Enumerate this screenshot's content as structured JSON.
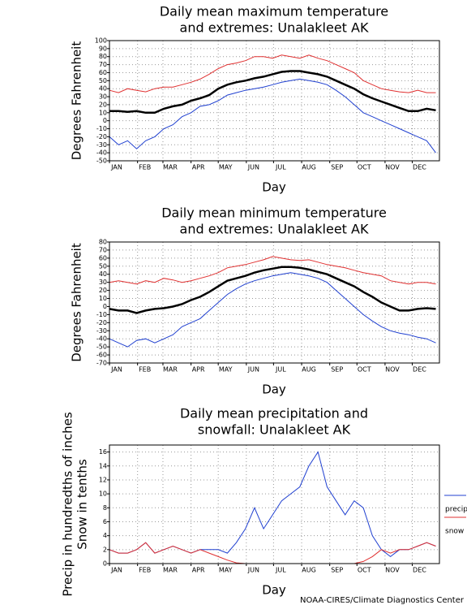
{
  "chart_data": [
    {
      "type": "line",
      "title": [
        "Daily mean maximum temperature",
        "and extremes: Unalakleet AK"
      ],
      "ylabel": [
        "Degrees Fahrenheit"
      ],
      "xlabel": "Day",
      "xlim": [
        1,
        365
      ],
      "xticks": [
        {
          "value": 1,
          "label": "JAN"
        },
        {
          "value": 32,
          "label": "FEB"
        },
        {
          "value": 60,
          "label": "MAR"
        },
        {
          "value": 91,
          "label": "APR"
        },
        {
          "value": 121,
          "label": "MAY"
        },
        {
          "value": 152,
          "label": "JUN"
        },
        {
          "value": 182,
          "label": "JUL"
        },
        {
          "value": 213,
          "label": "AUG"
        },
        {
          "value": 244,
          "label": "SEP"
        },
        {
          "value": 274,
          "label": "OCT"
        },
        {
          "value": 305,
          "label": "NOV"
        },
        {
          "value": 335,
          "label": "DEC"
        }
      ],
      "ylim": [
        -50,
        100
      ],
      "yticks": [
        -50,
        -40,
        -30,
        -20,
        -10,
        0,
        10,
        20,
        30,
        40,
        50,
        60,
        70,
        80,
        90,
        100
      ],
      "grid": true,
      "x": [
        1,
        11,
        21,
        31,
        41,
        51,
        61,
        71,
        81,
        91,
        101,
        111,
        121,
        131,
        141,
        151,
        161,
        171,
        181,
        191,
        201,
        211,
        221,
        231,
        241,
        251,
        261,
        271,
        281,
        291,
        301,
        311,
        321,
        331,
        341,
        351,
        361
      ],
      "series": [
        {
          "color": "#e03030",
          "width": 1,
          "values": [
            38,
            35,
            40,
            38,
            36,
            40,
            42,
            42,
            45,
            48,
            52,
            58,
            65,
            70,
            72,
            75,
            80,
            80,
            78,
            82,
            80,
            78,
            82,
            78,
            75,
            70,
            65,
            60,
            50,
            45,
            40,
            38,
            36,
            35,
            38,
            35,
            35
          ]
        },
        {
          "color": "#000000",
          "width": 2.5,
          "values": [
            12,
            12,
            11,
            12,
            10,
            10,
            15,
            18,
            20,
            25,
            28,
            32,
            40,
            45,
            48,
            50,
            53,
            55,
            58,
            61,
            62,
            62,
            60,
            58,
            55,
            50,
            45,
            40,
            33,
            28,
            24,
            20,
            16,
            12,
            12,
            15,
            13
          ]
        },
        {
          "color": "#2040d0",
          "width": 1,
          "values": [
            -20,
            -30,
            -25,
            -35,
            -25,
            -20,
            -10,
            -5,
            5,
            10,
            18,
            20,
            25,
            32,
            35,
            38,
            40,
            42,
            45,
            48,
            50,
            52,
            50,
            48,
            45,
            38,
            30,
            20,
            10,
            5,
            0,
            -5,
            -10,
            -15,
            -20,
            -25,
            -40
          ]
        }
      ]
    },
    {
      "type": "line",
      "title": [
        "Daily mean minimum temperature",
        "and extremes: Unalakleet AK"
      ],
      "ylabel": [
        "Degrees Fahrenheit"
      ],
      "xlabel": "Day",
      "xlim": [
        1,
        365
      ],
      "xticks": [
        {
          "value": 1,
          "label": "JAN"
        },
        {
          "value": 32,
          "label": "FEB"
        },
        {
          "value": 60,
          "label": "MAR"
        },
        {
          "value": 91,
          "label": "APR"
        },
        {
          "value": 121,
          "label": "MAY"
        },
        {
          "value": 152,
          "label": "JUN"
        },
        {
          "value": 182,
          "label": "JUL"
        },
        {
          "value": 213,
          "label": "AUG"
        },
        {
          "value": 244,
          "label": "SEP"
        },
        {
          "value": 274,
          "label": "OCT"
        },
        {
          "value": 305,
          "label": "NOV"
        },
        {
          "value": 335,
          "label": "DEC"
        }
      ],
      "ylim": [
        -70,
        80
      ],
      "yticks": [
        -70,
        -60,
        -50,
        -40,
        -30,
        -20,
        -10,
        0,
        10,
        20,
        30,
        40,
        50,
        60,
        70,
        80
      ],
      "grid": true,
      "x": [
        1,
        11,
        21,
        31,
        41,
        51,
        61,
        71,
        81,
        91,
        101,
        111,
        121,
        131,
        141,
        151,
        161,
        171,
        181,
        191,
        201,
        211,
        221,
        231,
        241,
        251,
        261,
        271,
        281,
        291,
        301,
        311,
        321,
        331,
        341,
        351,
        361
      ],
      "series": [
        {
          "color": "#e03030",
          "width": 1,
          "values": [
            30,
            32,
            30,
            28,
            32,
            30,
            35,
            33,
            30,
            32,
            35,
            38,
            42,
            48,
            50,
            52,
            55,
            58,
            62,
            60,
            58,
            57,
            58,
            55,
            52,
            50,
            48,
            45,
            42,
            40,
            38,
            32,
            30,
            28,
            30,
            30,
            28
          ]
        },
        {
          "color": "#000000",
          "width": 2.5,
          "values": [
            -3,
            -5,
            -5,
            -8,
            -5,
            -3,
            -2,
            0,
            3,
            8,
            12,
            18,
            25,
            32,
            35,
            38,
            42,
            45,
            47,
            49,
            49,
            48,
            46,
            43,
            40,
            35,
            30,
            25,
            18,
            12,
            5,
            0,
            -5,
            -5,
            -3,
            -2,
            -3
          ]
        },
        {
          "color": "#2040d0",
          "width": 1,
          "values": [
            -40,
            -45,
            -50,
            -42,
            -40,
            -45,
            -40,
            -35,
            -25,
            -20,
            -15,
            -5,
            5,
            15,
            22,
            28,
            32,
            35,
            38,
            40,
            42,
            40,
            38,
            35,
            30,
            20,
            10,
            0,
            -10,
            -18,
            -25,
            -30,
            -33,
            -35,
            -38,
            -40,
            -45
          ]
        }
      ]
    },
    {
      "type": "line",
      "title": [
        "Daily mean precipitation and",
        "snowfall: Unalakleet AK"
      ],
      "ylabel": [
        "Precip in hundredths of inches",
        "Snow in tenths"
      ],
      "xlabel": "Day",
      "xlim": [
        1,
        365
      ],
      "xticks": [
        {
          "value": 1,
          "label": "JAN"
        },
        {
          "value": 32,
          "label": "FEB"
        },
        {
          "value": 60,
          "label": "MAR"
        },
        {
          "value": 91,
          "label": "APR"
        },
        {
          "value": 121,
          "label": "MAY"
        },
        {
          "value": 152,
          "label": "JUN"
        },
        {
          "value": 182,
          "label": "JUL"
        },
        {
          "value": 213,
          "label": "AUG"
        },
        {
          "value": 244,
          "label": "SEP"
        },
        {
          "value": 274,
          "label": "OCT"
        },
        {
          "value": 305,
          "label": "NOV"
        },
        {
          "value": 335,
          "label": "DEC"
        }
      ],
      "ylim": [
        0,
        17
      ],
      "yticks": [
        0,
        2,
        4,
        6,
        8,
        10,
        12,
        14,
        16
      ],
      "grid": true,
      "legend": "right",
      "x": [
        1,
        11,
        21,
        31,
        41,
        51,
        61,
        71,
        81,
        91,
        101,
        111,
        121,
        131,
        141,
        151,
        161,
        171,
        181,
        191,
        201,
        211,
        221,
        231,
        241,
        251,
        261,
        271,
        281,
        291,
        301,
        311,
        321,
        331,
        341,
        351,
        361
      ],
      "series": [
        {
          "name": "precip",
          "color": "#2040d0",
          "width": 1,
          "values": [
            2,
            1.5,
            1.5,
            2,
            3,
            1.5,
            2,
            2.5,
            2,
            1.5,
            2,
            2,
            2,
            1.5,
            3,
            5,
            8,
            5,
            7,
            9,
            10,
            11,
            14,
            16,
            11,
            9,
            7,
            9,
            8,
            4,
            2,
            1,
            2,
            2,
            2.5,
            3,
            2.5
          ]
        },
        {
          "name": "snow",
          "color": "#e03030",
          "width": 1,
          "values": [
            2,
            1.5,
            1.5,
            2,
            3,
            1.5,
            2,
            2.5,
            2,
            1.5,
            2,
            1.5,
            1,
            0.5,
            0.1,
            0,
            0,
            0,
            0,
            0,
            0,
            0,
            0,
            0,
            0,
            0,
            0,
            0,
            0.3,
            1,
            2,
            1.5,
            2,
            2,
            2.5,
            3,
            2.5
          ]
        }
      ]
    }
  ],
  "credit": "NOAA-CIRES/Climate Diagnostics Center"
}
